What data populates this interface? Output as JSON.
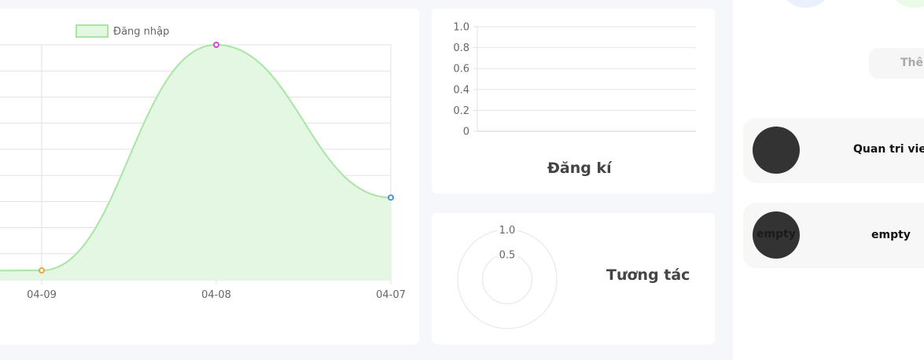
{
  "login_chart": {
    "legend": "Đăng nhập",
    "chart_data": {
      "type": "area",
      "x": [
        "04-09",
        "04-08",
        "04-07"
      ],
      "series": [
        {
          "name": "Đăng nhập",
          "points": [
            {
              "x": "04-09",
              "y": 0.04
            },
            {
              "x": "04-08",
              "y": 1.0
            },
            {
              "x": "04-07",
              "y": 0.35
            }
          ]
        }
      ],
      "grid": true,
      "legend_position": "top",
      "colors": {
        "line": "#a8e6a3",
        "fill": "#e3f7e2",
        "points": [
          "#f0a040",
          "#e040e0",
          "#4a90e2"
        ]
      }
    }
  },
  "register_chart": {
    "title": "Đăng kí",
    "chart_data": {
      "type": "bar",
      "categories": [],
      "values": [],
      "y_ticks": [
        "1.0",
        "0.8",
        "0.6",
        "0.4",
        "0.2",
        "0"
      ],
      "ylim": [
        0,
        1.0
      ],
      "grid": true
    }
  },
  "interaction_chart": {
    "title": "Tương tác",
    "chart_data": {
      "type": "polar",
      "r_ticks": [
        "1.0",
        "0.5"
      ],
      "values": []
    }
  },
  "right_panel": {
    "add_button_label": "Thêm",
    "users": [
      {
        "name": "Quan tri vien",
        "avatar_text": ""
      },
      {
        "name": "empty",
        "avatar_text": "empty"
      }
    ]
  }
}
